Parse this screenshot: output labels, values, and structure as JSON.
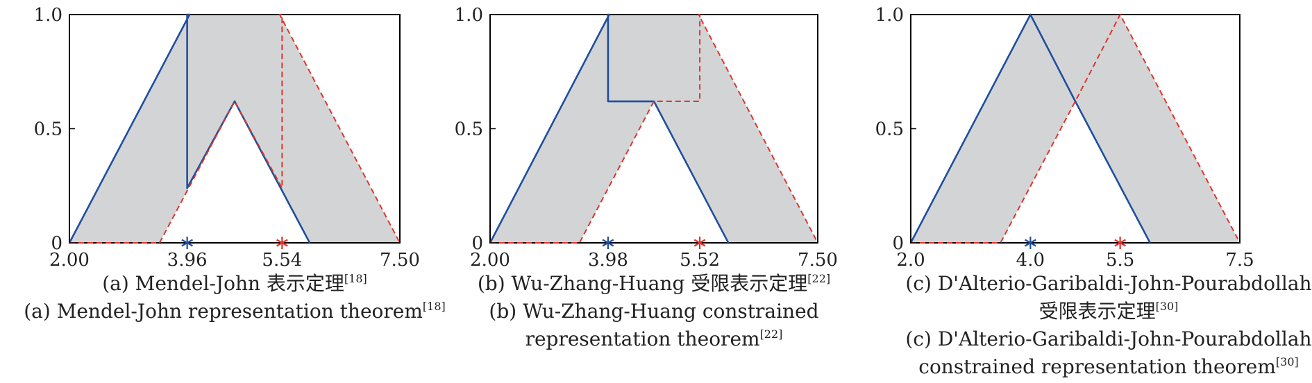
{
  "colors": {
    "fou_fill": "#d3d4d6",
    "blue": "#1f4e9c",
    "red": "#e0342c",
    "axis": "#000000"
  },
  "chart_data": [
    {
      "type": "line",
      "y_ticks": [
        "1.0",
        "0.5",
        "0"
      ],
      "x_ticks": [
        "2.00",
        "3.96",
        "5.54",
        "7.50"
      ],
      "xlim": [
        2.0,
        7.5
      ],
      "ylim": [
        0,
        1.0
      ],
      "fou": {
        "upper": [
          [
            2.0,
            0
          ],
          [
            4.0,
            1.0
          ],
          [
            5.5,
            1.0
          ],
          [
            7.5,
            0
          ]
        ],
        "lower": [
          [
            3.5,
            0
          ],
          [
            4.75,
            0.62
          ],
          [
            6.0,
            0
          ]
        ]
      },
      "blue_line": [
        [
          2.0,
          0
        ],
        [
          4.0,
          1.0
        ],
        [
          3.96,
          1.0
        ],
        [
          3.96,
          0.24
        ],
        [
          4.75,
          0.62
        ],
        [
          6.0,
          0
        ]
      ],
      "red_line": [
        [
          2.0,
          0
        ],
        [
          3.5,
          0
        ],
        [
          4.75,
          0.62
        ],
        [
          5.54,
          0.24
        ],
        [
          5.54,
          1.0
        ],
        [
          5.5,
          1.0
        ],
        [
          7.5,
          0
        ]
      ],
      "markers": [
        {
          "x": 3.96,
          "color": "blue"
        },
        {
          "x": 5.54,
          "color": "red"
        }
      ],
      "caption_lines": [
        {
          "text": "(a) Mendel-John 表示定理",
          "ref": "[18]"
        },
        {
          "text": "(a) Mendel-John representation theorem",
          "ref": "[18]"
        }
      ]
    },
    {
      "type": "line",
      "y_ticks": [
        "1.0",
        "0.5",
        "0"
      ],
      "x_ticks": [
        "2.00",
        "3.98",
        "5.52",
        "7.50"
      ],
      "xlim": [
        2.0,
        7.5
      ],
      "ylim": [
        0,
        1.0
      ],
      "fou": {
        "upper": [
          [
            2.0,
            0
          ],
          [
            4.0,
            1.0
          ],
          [
            5.5,
            1.0
          ],
          [
            7.5,
            0
          ]
        ],
        "lower": [
          [
            3.5,
            0
          ],
          [
            4.75,
            0.62
          ],
          [
            6.0,
            0
          ]
        ]
      },
      "blue_line": [
        [
          2.0,
          0
        ],
        [
          4.0,
          1.0
        ],
        [
          3.98,
          1.0
        ],
        [
          3.98,
          0.62
        ],
        [
          4.75,
          0.62
        ],
        [
          6.0,
          0
        ]
      ],
      "red_line": [
        [
          2.0,
          0
        ],
        [
          3.5,
          0
        ],
        [
          4.75,
          0.62
        ],
        [
          5.52,
          0.62
        ],
        [
          5.52,
          1.0
        ],
        [
          5.5,
          1.0
        ],
        [
          7.5,
          0
        ]
      ],
      "markers": [
        {
          "x": 3.98,
          "color": "blue"
        },
        {
          "x": 5.52,
          "color": "red"
        }
      ],
      "caption_lines": [
        {
          "text": "(b) Wu-Zhang-Huang 受限表示定理",
          "ref": "[22]"
        },
        {
          "text": "(b) Wu-Zhang-Huang constrained",
          "ref": ""
        },
        {
          "text": "representation theorem",
          "ref": "[22]"
        }
      ]
    },
    {
      "type": "line",
      "y_ticks": [
        "1.0",
        "0.5",
        "0"
      ],
      "x_ticks": [
        "2.0",
        "4.0",
        "5.5",
        "7.5"
      ],
      "xlim": [
        2.0,
        7.5
      ],
      "ylim": [
        0,
        1.0
      ],
      "fou": {
        "upper": [
          [
            2.0,
            0
          ],
          [
            4.0,
            1.0
          ],
          [
            5.5,
            1.0
          ],
          [
            7.5,
            0
          ]
        ],
        "lower": [
          [
            3.5,
            0
          ],
          [
            4.75,
            0.62
          ],
          [
            6.0,
            0
          ]
        ]
      },
      "blue_line": [
        [
          2.0,
          0
        ],
        [
          4.0,
          1.0
        ],
        [
          4.75,
          0.62
        ],
        [
          6.0,
          0
        ]
      ],
      "red_line": [
        [
          2.0,
          0
        ],
        [
          3.5,
          0
        ],
        [
          4.75,
          0.62
        ],
        [
          5.5,
          1.0
        ],
        [
          7.5,
          0
        ]
      ],
      "markers": [
        {
          "x": 4.0,
          "color": "blue"
        },
        {
          "x": 5.5,
          "color": "red"
        }
      ],
      "caption_lines": [
        {
          "text": "(c) D'Alterio-Garibaldi-John-Pourabdollah",
          "ref": ""
        },
        {
          "text": "受限表示定理",
          "ref": "[30]"
        },
        {
          "text": "(c) D'Alterio-Garibaldi-John-Pourabdollah",
          "ref": ""
        },
        {
          "text": "constrained representation theorem",
          "ref": "[30]"
        }
      ]
    }
  ]
}
